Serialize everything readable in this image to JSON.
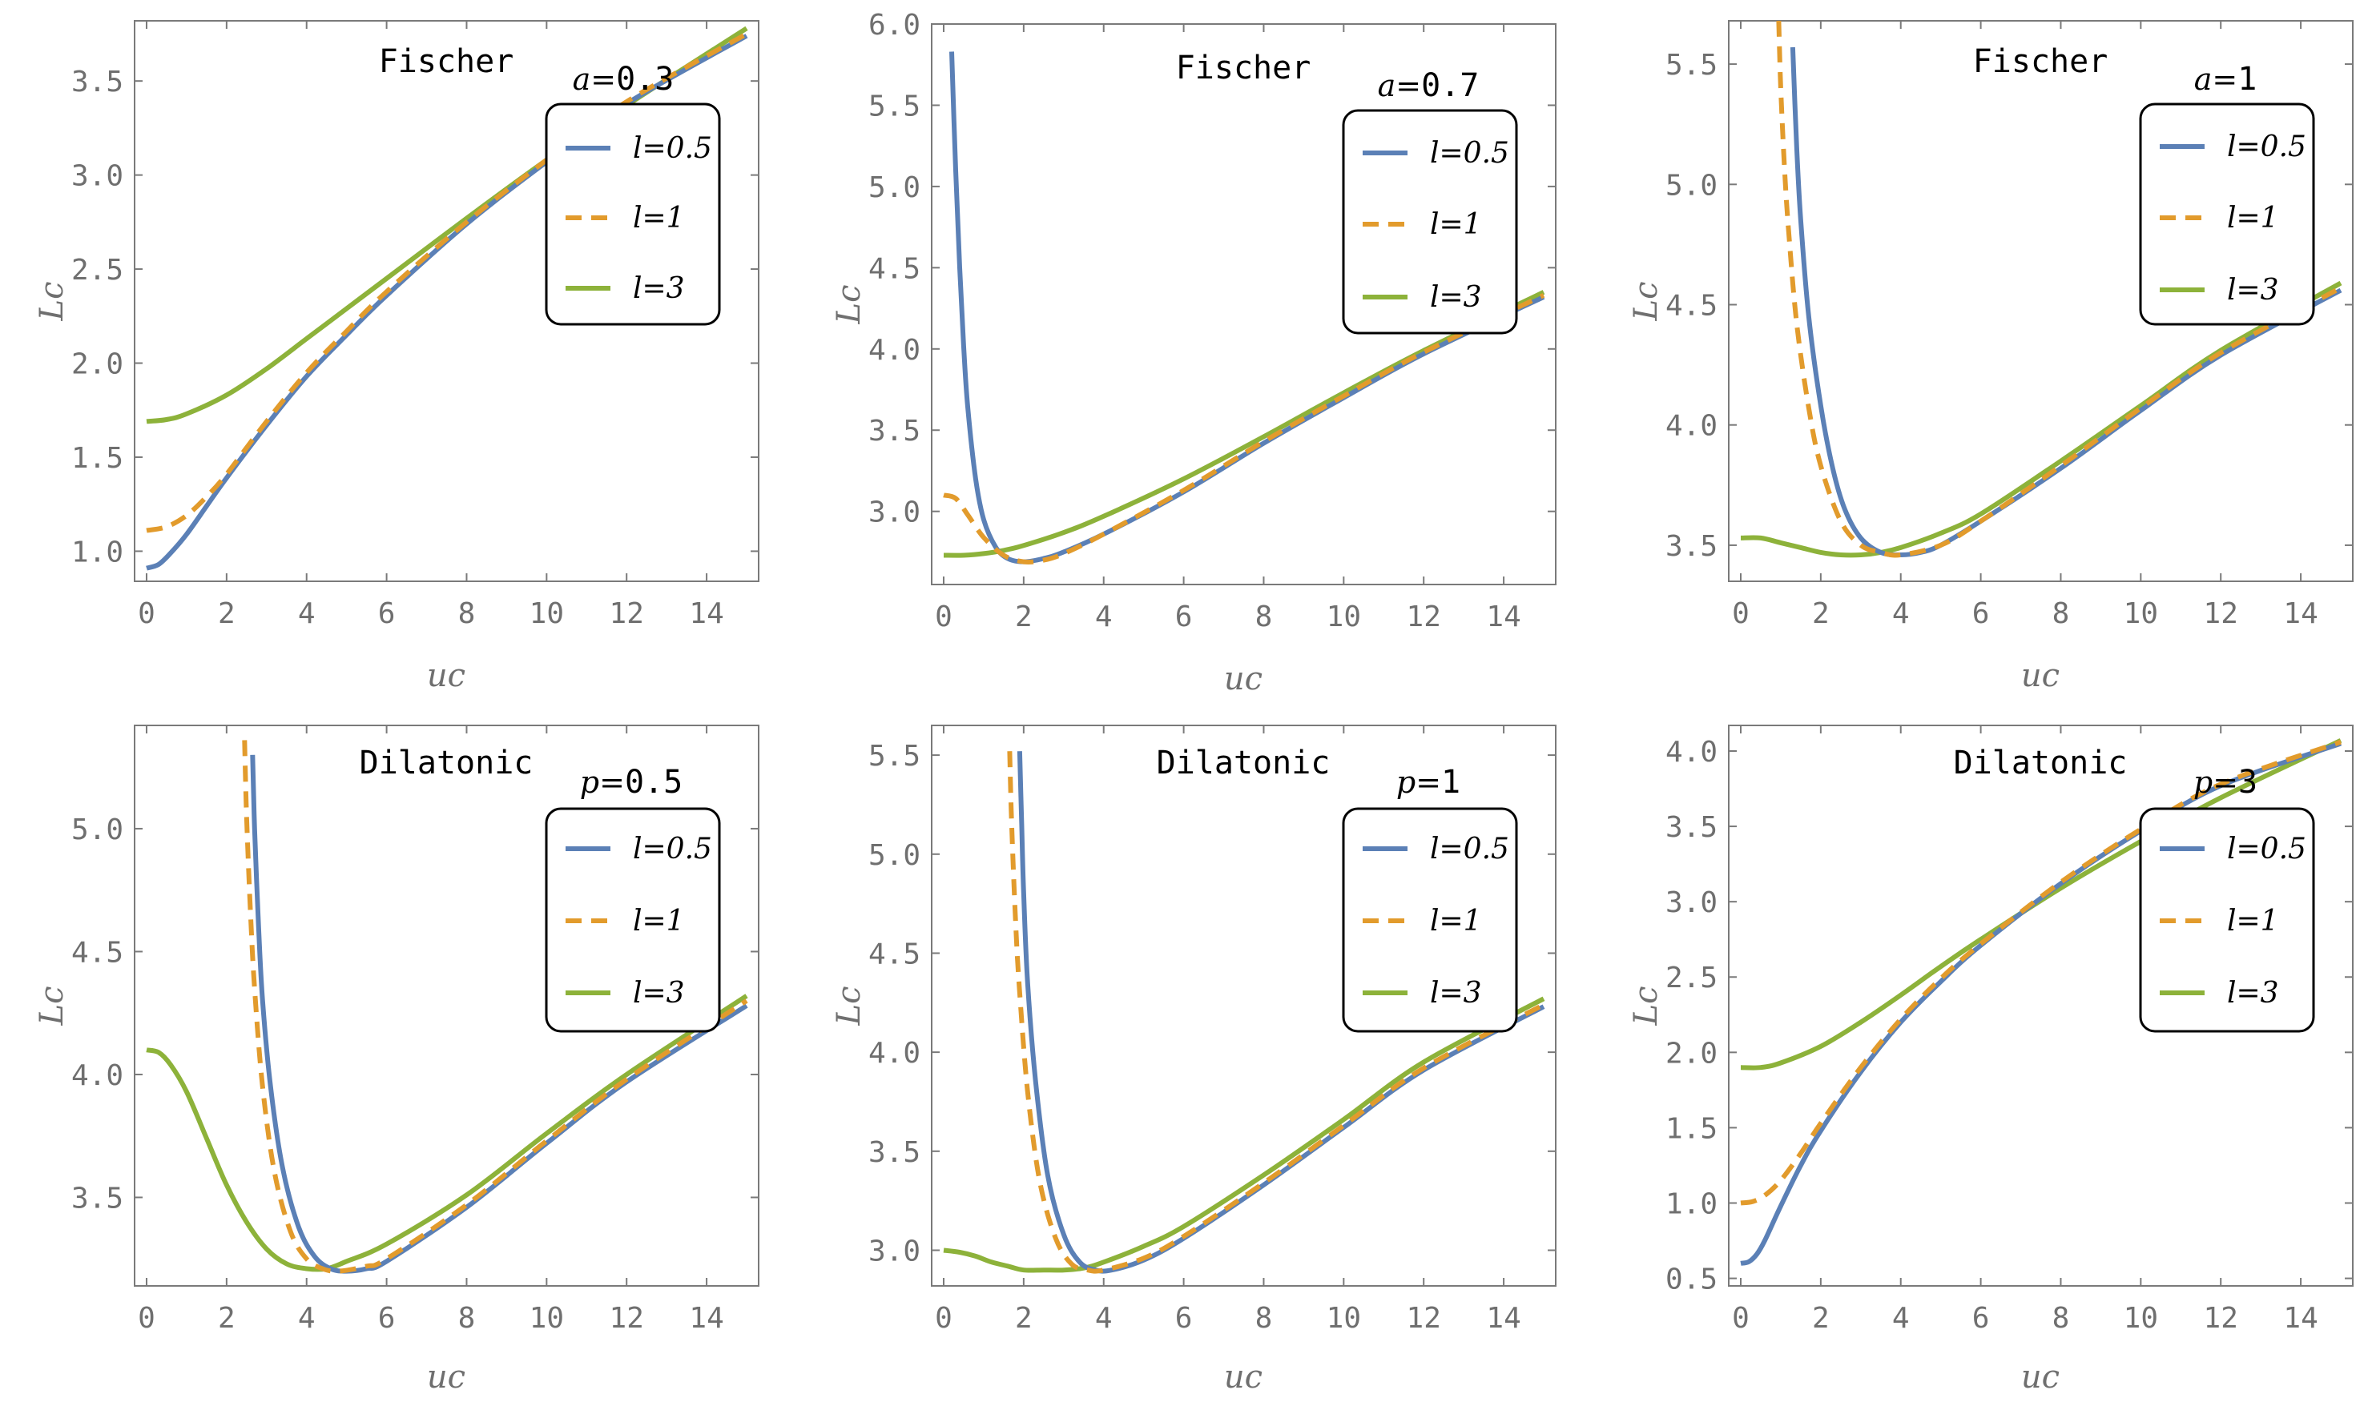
{
  "series_colors": {
    "l=0.5": "#5b80b6",
    "l=1": "#e29b2c",
    "l=3": "#8db23a"
  },
  "chart_data": [
    {
      "type": "line",
      "family": "Fischer",
      "param_name": "a",
      "param_eq": "=",
      "param_value": "0.3",
      "xlabel": "uc",
      "ylabel": "Lc",
      "xlim": [
        -0.3,
        15.3
      ],
      "ylim": [
        0.84,
        3.82
      ],
      "xticks": [
        0,
        2,
        4,
        6,
        8,
        10,
        12,
        14
      ],
      "xtick_labels": [
        "0",
        "2",
        "4",
        "6",
        "8",
        "10",
        "12",
        "14"
      ],
      "yticks": [
        1.0,
        1.5,
        2.0,
        2.5,
        3.0,
        3.5
      ],
      "ytick_labels": [
        "1.0",
        "1.5",
        "2.0",
        "2.5",
        "3.0",
        "3.5"
      ],
      "legend": [
        "l=0.5",
        "l=1",
        "l=3"
      ],
      "series": [
        {
          "name": "l=0.5",
          "style": "solid",
          "x": [
            0,
            0.3,
            0.6,
            1,
            1.5,
            2,
            3,
            4,
            5,
            6,
            8,
            10,
            12,
            15
          ],
          "y": [
            0.91,
            0.93,
            0.99,
            1.09,
            1.24,
            1.39,
            1.67,
            1.93,
            2.15,
            2.36,
            2.74,
            3.07,
            3.38,
            3.74
          ]
        },
        {
          "name": "l=1",
          "style": "dashed",
          "x": [
            0,
            0.5,
            1,
            1.5,
            2,
            3,
            4,
            5,
            6,
            8,
            10,
            12,
            15
          ],
          "y": [
            1.11,
            1.13,
            1.19,
            1.29,
            1.41,
            1.69,
            1.95,
            2.17,
            2.38,
            2.75,
            3.08,
            3.39,
            3.75
          ]
        },
        {
          "name": "l=3",
          "style": "solid",
          "x": [
            0,
            0.5,
            1,
            2,
            3,
            4,
            5,
            6,
            8,
            10,
            12,
            15
          ],
          "y": [
            1.69,
            1.7,
            1.73,
            1.83,
            1.97,
            2.13,
            2.29,
            2.45,
            2.77,
            3.08,
            3.37,
            3.78
          ]
        }
      ]
    },
    {
      "type": "line",
      "family": "Fischer",
      "param_name": "a",
      "param_eq": "=",
      "param_value": "0.7",
      "xlabel": "uc",
      "ylabel": "Lc",
      "xlim": [
        -0.3,
        15.3
      ],
      "ylim": [
        2.55,
        6.0
      ],
      "xticks": [
        0,
        2,
        4,
        6,
        8,
        10,
        12,
        14
      ],
      "xtick_labels": [
        "0",
        "2",
        "4",
        "6",
        "8",
        "10",
        "12",
        "14"
      ],
      "yticks": [
        3.0,
        3.5,
        4.0,
        4.5,
        5.0,
        5.5,
        6.0
      ],
      "ytick_labels": [
        "3.0",
        "3.5",
        "4.0",
        "4.5",
        "5.0",
        "5.5",
        "6.0"
      ],
      "legend": [
        "l=0.5",
        "l=1",
        "l=3"
      ],
      "series": [
        {
          "name": "l=0.5",
          "style": "solid",
          "x": [
            0.2,
            0.3,
            0.4,
            0.5,
            0.6,
            0.8,
            1.0,
            1.3,
            1.6,
            2.0,
            2.5,
            3,
            4,
            6,
            8,
            10,
            12,
            15
          ],
          "y": [
            5.83,
            5.1,
            4.5,
            4.02,
            3.65,
            3.2,
            2.95,
            2.78,
            2.71,
            2.69,
            2.71,
            2.75,
            2.86,
            3.12,
            3.42,
            3.7,
            3.97,
            4.32
          ]
        },
        {
          "name": "l=1",
          "style": "dashed",
          "x": [
            0,
            0.3,
            0.6,
            1.0,
            1.5,
            2.0,
            2.5,
            3,
            4,
            6,
            8,
            10,
            12,
            15
          ],
          "y": [
            3.1,
            3.08,
            2.98,
            2.84,
            2.73,
            2.69,
            2.7,
            2.74,
            2.86,
            3.13,
            3.43,
            3.71,
            3.98,
            4.33
          ]
        },
        {
          "name": "l=3",
          "style": "solid",
          "x": [
            0,
            0.5,
            1,
            1.5,
            2,
            3,
            4,
            6,
            8,
            10,
            12,
            15
          ],
          "y": [
            2.73,
            2.73,
            2.74,
            2.76,
            2.79,
            2.87,
            2.97,
            3.2,
            3.46,
            3.73,
            3.99,
            4.35
          ]
        }
      ]
    },
    {
      "type": "line",
      "family": "Fischer",
      "param_name": "a",
      "param_eq": "=",
      "param_value": "1",
      "xlabel": "uc",
      "ylabel": "Lc",
      "xlim": [
        -0.3,
        15.3
      ],
      "ylim": [
        3.35,
        5.68
      ],
      "xticks": [
        0,
        2,
        4,
        6,
        8,
        10,
        12,
        14
      ],
      "xtick_labels": [
        "0",
        "2",
        "4",
        "6",
        "8",
        "10",
        "12",
        "14"
      ],
      "yticks": [
        3.5,
        4.0,
        4.5,
        5.0,
        5.5
      ],
      "ytick_labels": [
        "3.5",
        "4.0",
        "4.5",
        "5.0",
        "5.5"
      ],
      "legend": [
        "l=0.5",
        "l=1",
        "l=3"
      ],
      "series": [
        {
          "name": "l=0.5",
          "style": "solid",
          "x": [
            1.3,
            1.4,
            1.5,
            1.7,
            2.0,
            2.3,
            2.6,
            3.0,
            3.5,
            4.0,
            4.5,
            5,
            6,
            8,
            10,
            12,
            15
          ],
          "y": [
            5.57,
            5.15,
            4.85,
            4.45,
            4.08,
            3.82,
            3.65,
            3.53,
            3.47,
            3.46,
            3.47,
            3.5,
            3.6,
            3.82,
            4.06,
            4.29,
            4.56
          ]
        },
        {
          "name": "l=1",
          "style": "dashed",
          "x": [
            0.95,
            1.0,
            1.1,
            1.2,
            1.4,
            1.7,
            2.0,
            2.5,
            3.0,
            3.5,
            4.0,
            5,
            6,
            8,
            10,
            12,
            15
          ],
          "y": [
            5.68,
            5.4,
            5.05,
            4.8,
            4.42,
            4.07,
            3.83,
            3.6,
            3.5,
            3.47,
            3.46,
            3.5,
            3.6,
            3.83,
            4.07,
            4.3,
            4.57
          ]
        },
        {
          "name": "l=3",
          "style": "solid",
          "x": [
            0,
            0.5,
            1,
            1.5,
            2,
            2.5,
            3,
            3.5,
            4,
            5,
            6,
            8,
            10,
            12,
            15
          ],
          "y": [
            3.53,
            3.53,
            3.51,
            3.49,
            3.47,
            3.46,
            3.46,
            3.47,
            3.49,
            3.55,
            3.63,
            3.85,
            4.08,
            4.31,
            4.59
          ]
        }
      ]
    },
    {
      "type": "line",
      "family": "Dilatonic",
      "param_name": "p",
      "param_eq": "=",
      "param_value": "0.5",
      "xlabel": "uc",
      "ylabel": "Lc",
      "xlim": [
        -0.3,
        15.3
      ],
      "ylim": [
        3.14,
        5.42
      ],
      "xticks": [
        0,
        2,
        4,
        6,
        8,
        10,
        12,
        14
      ],
      "xtick_labels": [
        "0",
        "2",
        "4",
        "6",
        "8",
        "10",
        "12",
        "14"
      ],
      "yticks": [
        3.5,
        4.0,
        4.5,
        5.0
      ],
      "ytick_labels": [
        "3.5",
        "4.0",
        "4.5",
        "5.0"
      ],
      "legend": [
        "l=0.5",
        "l=1",
        "l=3"
      ],
      "series": [
        {
          "name": "l=0.5",
          "style": "solid",
          "x": [
            2.65,
            2.7,
            2.8,
            2.9,
            3.1,
            3.4,
            3.8,
            4.2,
            4.6,
            5.0,
            5.5,
            6,
            8,
            10,
            12,
            15
          ],
          "y": [
            5.3,
            5.0,
            4.6,
            4.3,
            3.95,
            3.62,
            3.38,
            3.26,
            3.21,
            3.2,
            3.21,
            3.24,
            3.46,
            3.72,
            3.97,
            4.28
          ]
        },
        {
          "name": "l=1",
          "style": "dashed",
          "x": [
            2.45,
            2.5,
            2.6,
            2.7,
            2.9,
            3.2,
            3.6,
            4.0,
            4.4,
            4.8,
            5.5,
            6,
            8,
            10,
            12,
            15
          ],
          "y": [
            5.36,
            5.05,
            4.65,
            4.35,
            3.95,
            3.6,
            3.36,
            3.25,
            3.21,
            3.2,
            3.22,
            3.25,
            3.47,
            3.73,
            3.98,
            4.3
          ]
        },
        {
          "name": "l=3",
          "style": "solid",
          "x": [
            0,
            0.3,
            0.6,
            1,
            1.5,
            2,
            2.5,
            3,
            3.5,
            4,
            4.5,
            5,
            6,
            8,
            10,
            12,
            15
          ],
          "y": [
            4.1,
            4.09,
            4.04,
            3.93,
            3.74,
            3.55,
            3.4,
            3.29,
            3.23,
            3.21,
            3.21,
            3.24,
            3.31,
            3.51,
            3.76,
            4.0,
            4.32
          ]
        }
      ]
    },
    {
      "type": "line",
      "family": "Dilatonic",
      "param_name": "p",
      "param_eq": "=",
      "param_value": "1",
      "xlabel": "uc",
      "ylabel": "Lc",
      "xlim": [
        -0.3,
        15.3
      ],
      "ylim": [
        2.82,
        5.65
      ],
      "xticks": [
        0,
        2,
        4,
        6,
        8,
        10,
        12,
        14
      ],
      "xtick_labels": [
        "0",
        "2",
        "4",
        "6",
        "8",
        "10",
        "12",
        "14"
      ],
      "yticks": [
        3.0,
        3.5,
        4.0,
        4.5,
        5.0,
        5.5
      ],
      "ytick_labels": [
        "3.0",
        "3.5",
        "4.0",
        "4.5",
        "5.0",
        "5.5"
      ],
      "legend": [
        "l=0.5",
        "l=1",
        "l=3"
      ],
      "series": [
        {
          "name": "l=0.5",
          "style": "solid",
          "x": [
            1.9,
            1.95,
            2.0,
            2.1,
            2.3,
            2.6,
            3.0,
            3.4,
            3.8,
            4.2,
            5,
            6,
            8,
            10,
            12,
            15
          ],
          "y": [
            5.52,
            5.15,
            4.8,
            4.35,
            3.85,
            3.38,
            3.08,
            2.94,
            2.9,
            2.9,
            2.95,
            3.06,
            3.33,
            3.62,
            3.91,
            4.23
          ]
        },
        {
          "name": "l=1",
          "style": "dashed",
          "x": [
            1.65,
            1.7,
            1.8,
            1.9,
            2.1,
            2.4,
            2.8,
            3.2,
            3.6,
            4.0,
            5,
            6,
            8,
            10,
            12,
            15
          ],
          "y": [
            5.52,
            5.15,
            4.65,
            4.3,
            3.8,
            3.35,
            3.06,
            2.93,
            2.9,
            2.9,
            2.96,
            3.07,
            3.34,
            3.63,
            3.92,
            4.24
          ]
        },
        {
          "name": "l=3",
          "style": "solid",
          "x": [
            0,
            0.4,
            0.8,
            1.2,
            1.6,
            2.0,
            2.5,
            3.0,
            3.5,
            4,
            5,
            6,
            8,
            10,
            12,
            15
          ],
          "y": [
            3.0,
            2.99,
            2.97,
            2.94,
            2.92,
            2.9,
            2.9,
            2.9,
            2.91,
            2.94,
            3.02,
            3.12,
            3.38,
            3.66,
            3.95,
            4.27
          ]
        }
      ]
    },
    {
      "type": "line",
      "family": "Dilatonic",
      "param_name": "p",
      "param_eq": "=",
      "param_value": "3",
      "xlabel": "uc",
      "ylabel": "Lc",
      "xlim": [
        -0.3,
        15.3
      ],
      "ylim": [
        0.45,
        4.17
      ],
      "xticks": [
        0,
        2,
        4,
        6,
        8,
        10,
        12,
        14
      ],
      "xtick_labels": [
        "0",
        "2",
        "4",
        "6",
        "8",
        "10",
        "12",
        "14"
      ],
      "yticks": [
        0.5,
        1.0,
        1.5,
        2.0,
        2.5,
        3.0,
        3.5,
        4.0
      ],
      "ytick_labels": [
        "0.5",
        "1.0",
        "1.5",
        "2.0",
        "2.5",
        "3.0",
        "3.5",
        "4.0"
      ],
      "legend": [
        "l=0.5",
        "l=1",
        "l=3"
      ],
      "series": [
        {
          "name": "l=0.5",
          "style": "solid",
          "x": [
            0,
            0.2,
            0.4,
            0.6,
            1,
            1.5,
            2,
            3,
            4,
            5,
            6,
            8,
            10,
            12,
            15
          ],
          "y": [
            0.6,
            0.61,
            0.66,
            0.75,
            0.98,
            1.25,
            1.48,
            1.87,
            2.2,
            2.47,
            2.71,
            3.12,
            3.47,
            3.77,
            4.05
          ]
        },
        {
          "name": "l=1",
          "style": "dashed",
          "x": [
            0,
            0.3,
            0.6,
            1,
            1.5,
            2,
            3,
            4,
            5,
            6,
            8,
            10,
            12,
            15
          ],
          "y": [
            1.0,
            1.01,
            1.05,
            1.15,
            1.33,
            1.53,
            1.9,
            2.22,
            2.49,
            2.72,
            3.13,
            3.48,
            3.78,
            4.06
          ]
        },
        {
          "name": "l=3",
          "style": "solid",
          "x": [
            0,
            0.5,
            1,
            2,
            3,
            4,
            5,
            6,
            8,
            10,
            12,
            15
          ],
          "y": [
            1.9,
            1.9,
            1.93,
            2.04,
            2.2,
            2.38,
            2.57,
            2.75,
            3.09,
            3.4,
            3.69,
            4.07
          ]
        }
      ]
    }
  ]
}
